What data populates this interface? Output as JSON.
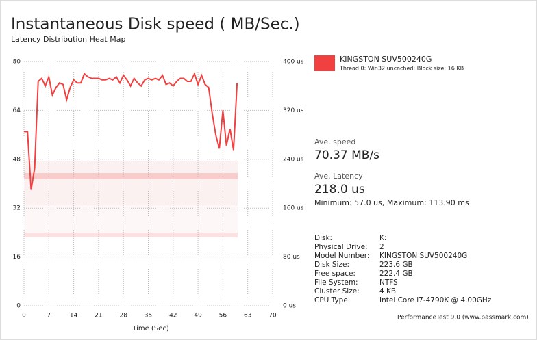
{
  "chart_data": {
    "type": "line",
    "title": "Instantaneous Disk speed ( MB/Sec.)",
    "subtitle": "Latency Distribution Heat Map",
    "x_label": "Time (Sec)",
    "x": [
      0,
      1,
      2,
      3,
      4,
      5,
      6,
      7,
      8,
      9,
      10,
      11,
      12,
      13,
      14,
      15,
      16,
      17,
      18,
      19,
      20,
      21,
      22,
      23,
      24,
      25,
      26,
      27,
      28,
      29,
      30,
      31,
      32,
      33,
      34,
      35,
      36,
      37,
      38,
      39,
      40,
      41,
      42,
      43,
      44,
      45,
      46,
      47,
      48,
      49,
      50,
      51,
      52,
      53,
      54,
      55,
      56,
      57,
      58,
      59,
      60
    ],
    "series": [
      {
        "name": "KINGSTON SUV500240G",
        "color": "#f04040",
        "values": [
          57.1,
          57,
          38,
          45,
          73.5,
          74.5,
          72,
          75,
          69,
          71.5,
          73,
          72.5,
          67.5,
          71.5,
          74,
          73,
          73,
          76,
          75,
          74.5,
          74.5,
          74.5,
          74,
          74,
          74.5,
          74,
          75,
          73,
          75.5,
          74,
          72,
          74.5,
          73,
          72,
          74,
          74.5,
          74,
          74.5,
          74,
          75.5,
          72.5,
          73,
          72,
          73.5,
          74.5,
          74.5,
          73.5,
          73.5,
          76,
          72.5,
          75.5,
          72.5,
          71.5,
          63,
          56,
          51.5,
          64,
          52.5,
          58,
          51,
          73
        ]
      }
    ],
    "legend_note": "Thread 0: Win32 uncached; Block size: 16 KB",
    "xlim": [
      0,
      70
    ],
    "xticks": [
      0,
      7,
      14,
      21,
      28,
      35,
      42,
      49,
      56,
      63,
      70
    ],
    "ylim": [
      0,
      80
    ],
    "yticks": [
      0,
      16,
      32,
      48,
      64,
      80
    ],
    "y2lim": [
      0,
      400
    ],
    "y2ticks": [
      {
        "value": 0,
        "label": "0 us"
      },
      {
        "value": 80,
        "label": "80 us"
      },
      {
        "value": 160,
        "label": "160 us"
      },
      {
        "value": 240,
        "label": "240 us"
      },
      {
        "value": 320,
        "label": "320 us"
      },
      {
        "value": 400,
        "label": "400 us"
      }
    ],
    "grid": true
  },
  "panel": {
    "ave_speed_label": "Ave. speed",
    "ave_speed": "70.37 MB/s",
    "ave_latency_label": "Ave. Latency",
    "ave_latency": "218.0 us",
    "min_max": "Minimum: 57.0 us, Maximum: 113.90 ms",
    "rows": [
      [
        "Disk:",
        "K:"
      ],
      [
        "Physical Drive:",
        "2"
      ],
      [
        "Model Number:",
        "KINGSTON SUV500240G"
      ],
      [
        "Disk Size:",
        "223.6 GB"
      ],
      [
        "Free space:",
        "222.4 GB"
      ],
      [
        "File System:",
        "NTFS"
      ],
      [
        "Cluster Size:",
        "4 KB"
      ],
      [
        "CPU Type:",
        "Intel Core i7-4790K @ 4.00GHz"
      ]
    ],
    "footer": "PerformanceTest 9.0 (www.passmark.com)"
  }
}
